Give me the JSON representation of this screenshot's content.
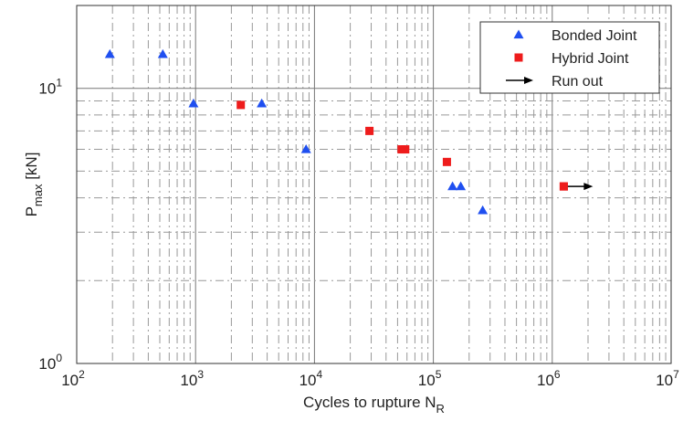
{
  "chart_data": {
    "type": "scatter",
    "xscale": "log",
    "yscale": "log",
    "xlim": [
      100,
      10000000
    ],
    "ylim": [
      1,
      20
    ],
    "grid": true,
    "legend_position": "top-right",
    "xlabel": "Cycles to rupture N",
    "xlabel_sub": "R",
    "ylabel": "P",
    "ylabel_sub": "max",
    "ylabel_unit": " [kN]",
    "x_ticks": [
      {
        "value": 100,
        "base": "10",
        "exp": "2"
      },
      {
        "value": 1000,
        "base": "10",
        "exp": "3"
      },
      {
        "value": 10000,
        "base": "10",
        "exp": "4"
      },
      {
        "value": 100000,
        "base": "10",
        "exp": "5"
      },
      {
        "value": 1000000,
        "base": "10",
        "exp": "6"
      },
      {
        "value": 10000000,
        "base": "10",
        "exp": "7"
      }
    ],
    "y_ticks": [
      {
        "value": 1,
        "base": "10",
        "exp": "0"
      },
      {
        "value": 10,
        "base": "10",
        "exp": "1"
      }
    ],
    "series": [
      {
        "name": "Bonded Joint",
        "marker": "triangle",
        "color": "#1f4ff0",
        "points": [
          {
            "x": 190,
            "y": 13.3
          },
          {
            "x": 530,
            "y": 13.3
          },
          {
            "x": 960,
            "y": 8.8
          },
          {
            "x": 3600,
            "y": 8.8
          },
          {
            "x": 8500,
            "y": 6.0
          },
          {
            "x": 145000,
            "y": 4.4
          },
          {
            "x": 170000,
            "y": 4.4
          },
          {
            "x": 260000,
            "y": 3.6
          }
        ]
      },
      {
        "name": "Hybrid Joint",
        "marker": "square",
        "color": "#ee1c1c",
        "points": [
          {
            "x": 2400,
            "y": 8.7
          },
          {
            "x": 29000,
            "y": 7.0
          },
          {
            "x": 54000,
            "y": 6.0
          },
          {
            "x": 58000,
            "y": 6.0
          },
          {
            "x": 130000,
            "y": 5.4
          },
          {
            "x": 1250000,
            "y": 4.4
          }
        ]
      },
      {
        "name": "Run out",
        "marker": "arrow",
        "color": "#000000",
        "points": [
          {
            "x": 1250000,
            "y": 4.4,
            "x_end": 2200000
          }
        ]
      }
    ]
  }
}
